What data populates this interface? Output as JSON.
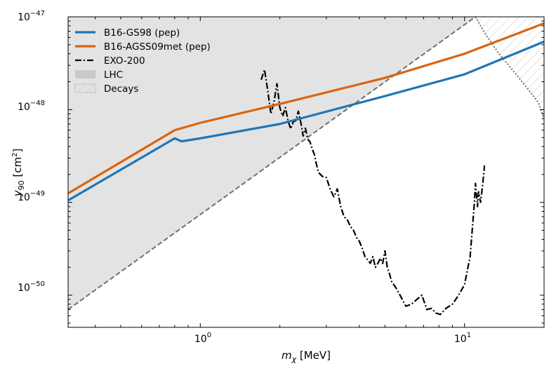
{
  "chart_data": {
    "type": "line",
    "x_scale": "log",
    "y_scale": "log",
    "xlim": [
      0.316,
      20.0
    ],
    "ylim": [
      4.5e-51,
      1e-47
    ],
    "xlabel_main": "m",
    "xlabel_sub": "χ",
    "xlabel_unit": " [MeV]",
    "ylabel_main": "y",
    "ylabel_sub": "90",
    "ylabel_unit": " [cm",
    "ylabel_sup": "2",
    "ylabel_close": "]",
    "x_ticks": [
      {
        "value": 1,
        "base": "10",
        "exp": "0"
      },
      {
        "value": 10,
        "base": "10",
        "exp": "1"
      }
    ],
    "y_ticks": [
      {
        "value": 1e-50,
        "base": "10",
        "exp": "−50"
      },
      {
        "value": 1e-49,
        "base": "10",
        "exp": "−49"
      },
      {
        "value": 1e-48,
        "base": "10",
        "exp": "−48"
      },
      {
        "value": 1e-47,
        "base": "10",
        "exp": "−47"
      }
    ],
    "colors": {
      "gs98": "#1f77b4",
      "agss": "#d9640f",
      "exo": "#000000",
      "lhc_fill": "#e3e3e3",
      "lhc_edge": "#707070",
      "decays_edge": "#707070",
      "hatch": "#c4c4c4"
    },
    "legend": [
      {
        "key": "gs98",
        "label": "B16-GS98 (pep)",
        "style": "line"
      },
      {
        "key": "agss",
        "label": "B16-AGSS09met (pep)",
        "style": "line"
      },
      {
        "key": "exo",
        "label": "EXO-200",
        "style": "dashdot"
      },
      {
        "key": "lhc",
        "label": "LHC",
        "style": "patch"
      },
      {
        "key": "decays",
        "label": "Decays",
        "style": "hatch"
      }
    ],
    "series": [
      {
        "name": "B16-GS98 (pep)",
        "key": "gs98",
        "x": [
          0.316,
          0.8,
          0.85,
          1.0,
          2.0,
          5.0,
          10.0,
          20.0
        ],
        "y": [
          1.05e-49,
          4.9e-49,
          4.55e-49,
          4.9e-49,
          7e-49,
          1.4e-48,
          2.4e-48,
          5.4e-48
        ]
      },
      {
        "name": "B16-AGSS09met (pep)",
        "key": "agss",
        "x": [
          0.316,
          0.8,
          1.0,
          2.0,
          5.0,
          10.0,
          20.0
        ],
        "y": [
          1.25e-49,
          6e-49,
          7.2e-49,
          1.15e-48,
          2.2e-48,
          4e-48,
          8.5e-48
        ]
      },
      {
        "name": "EXO-200",
        "key": "exo",
        "x": [
          1.7,
          1.75,
          1.8,
          1.85,
          1.9,
          1.95,
          2.0,
          2.05,
          2.1,
          2.15,
          2.2,
          2.25,
          2.3,
          2.35,
          2.4,
          2.45,
          2.5,
          2.55,
          2.6,
          2.65,
          2.7,
          2.75,
          2.8,
          2.9,
          3.0,
          3.1,
          3.2,
          3.25,
          3.3,
          3.4,
          3.5,
          3.6,
          3.7,
          3.8,
          3.9,
          4.0,
          4.1,
          4.2,
          4.3,
          4.4,
          4.5,
          4.6,
          4.7,
          4.8,
          4.9,
          5.0,
          5.1,
          5.2,
          5.3,
          5.5,
          5.7,
          6.0,
          6.3,
          6.6,
          6.9,
          7.2,
          7.5,
          7.8,
          8.1,
          8.5,
          9.0,
          9.5,
          10.0,
          10.5,
          10.9,
          11.0,
          11.1,
          11.2,
          11.3,
          11.5,
          11.7,
          11.9
        ],
        "y": [
          2.1e-48,
          2.7e-48,
          1.6e-48,
          9e-49,
          1.2e-48,
          1.9e-48,
          1.05e-48,
          8.5e-49,
          1.05e-48,
          7.5e-49,
          6.2e-49,
          7.4e-49,
          7.6e-49,
          9.6e-49,
          7.3e-49,
          5.2e-49,
          6.3e-49,
          4.8e-49,
          4.5e-49,
          3.8e-49,
          3.3e-49,
          2.6e-49,
          2.1e-49,
          1.9e-49,
          1.85e-49,
          1.4e-49,
          1.15e-49,
          1.25e-49,
          1.4e-49,
          9e-50,
          7e-50,
          6.5e-50,
          5.5e-50,
          5e-50,
          4.2e-50,
          3.8e-50,
          3.2e-50,
          2.6e-50,
          2.4e-50,
          2.2e-50,
          2.6e-50,
          2e-50,
          2.2e-50,
          2.5e-50,
          2.2e-50,
          3e-50,
          2e-50,
          1.7e-50,
          1.4e-50,
          1.2e-50,
          1e-50,
          7.6e-51,
          8e-51,
          9e-51,
          1e-50,
          7e-51,
          7.2e-51,
          6.4e-51,
          6.2e-51,
          7.2e-51,
          8e-51,
          1e-50,
          1.3e-50,
          2.6e-50,
          1e-49,
          1.6e-49,
          1.2e-49,
          9e-50,
          1.3e-49,
          1e-49,
          1.5e-49,
          2.5e-49
        ]
      },
      {
        "name": "LHC",
        "key": "lhc",
        "x": [
          0.316,
          11.0
        ],
        "y": [
          7e-51,
          1e-47
        ]
      },
      {
        "name": "Decays",
        "key": "decays",
        "x": [
          11.0,
          12.0,
          13.5,
          15.0,
          17.0,
          19.0,
          20.0
        ],
        "y": [
          1e-47,
          6.5e-48,
          4e-48,
          2.8e-48,
          1.8e-48,
          1.2e-48,
          8e-49
        ]
      }
    ]
  }
}
